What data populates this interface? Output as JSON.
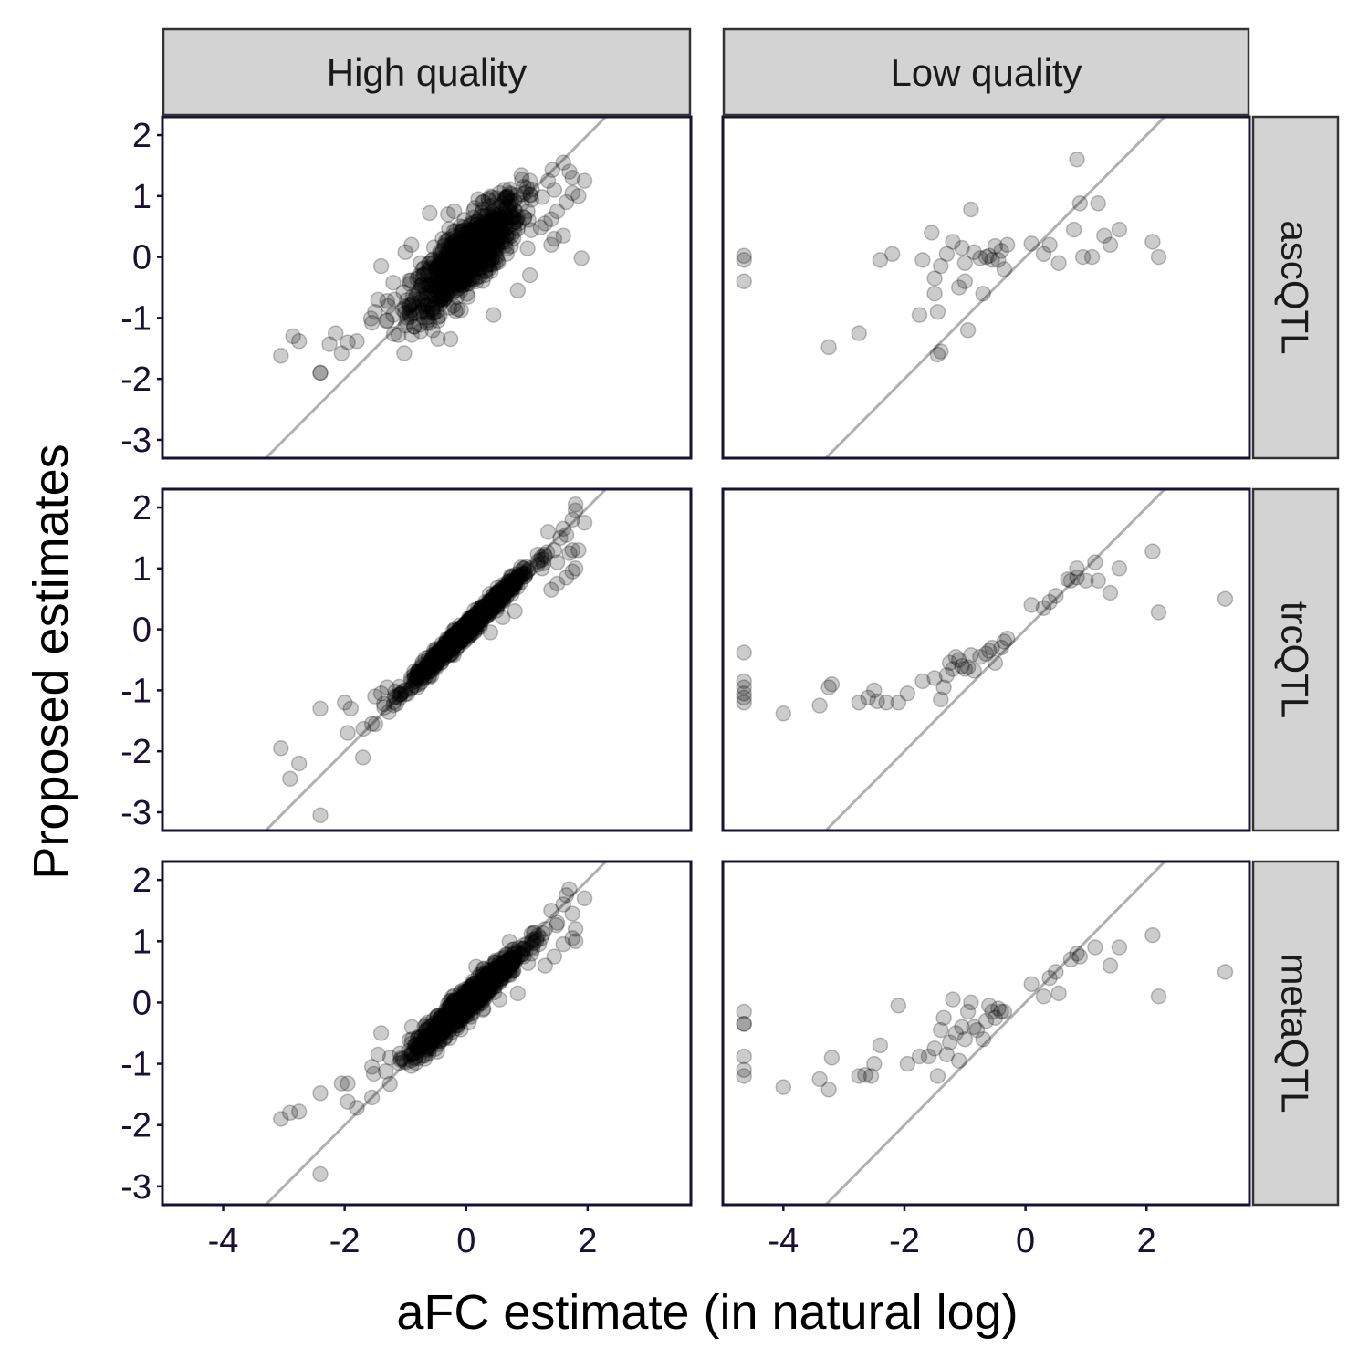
{
  "chart_data": {
    "type": "scatter",
    "xlabel": "aFC estimate (in natural log)",
    "ylabel": "Proposed estimates",
    "columns": [
      "High quality",
      "Low quality"
    ],
    "rows": [
      "ascQTL",
      "trcQTL",
      "metaQTL"
    ],
    "xlim": [
      -5.0,
      3.7
    ],
    "ylim": [
      -3.3,
      2.3
    ],
    "x_ticks": [
      -4,
      -2,
      0,
      2
    ],
    "y_ticks": [
      -3,
      -2,
      -1,
      0,
      1,
      2
    ],
    "reference_line": {
      "type": "identity",
      "slope": 1,
      "intercept": 0
    },
    "colors": {
      "point_fill": "#000000",
      "point_opacity": 0.2,
      "reference_line": "#b0b0b0",
      "panel_border": "#1a1033",
      "strip_fill": "#d3d3d3",
      "axis_text": "#1a1033"
    },
    "panels": [
      {
        "row": "ascQTL",
        "column": "High quality",
        "dense_cloud": {
          "n": 900,
          "x_center": 0.0,
          "x_sd": 0.45,
          "slope": 0.85,
          "noise_sd": 0.28
        },
        "points": [
          [
            -3.05,
            -1.62
          ],
          [
            -2.85,
            -1.3
          ],
          [
            -2.75,
            -1.38
          ],
          [
            -2.4,
            -1.9
          ],
          [
            -2.4,
            -1.9
          ],
          [
            -2.25,
            -1.43
          ],
          [
            -2.15,
            -1.25
          ],
          [
            -2.05,
            -1.58
          ],
          [
            -1.95,
            -1.4
          ],
          [
            -1.8,
            -1.38
          ],
          [
            -1.55,
            -1.08
          ],
          [
            -1.5,
            -0.9
          ],
          [
            -1.45,
            -0.7
          ],
          [
            -1.3,
            -0.72
          ],
          [
            -1.4,
            -0.15
          ],
          [
            -1.2,
            -0.95
          ],
          [
            -1.2,
            -0.42
          ],
          [
            -1.0,
            0.08
          ],
          [
            -0.9,
            0.2
          ],
          [
            -0.6,
            0.72
          ],
          [
            -0.3,
            0.7
          ],
          [
            0.2,
            0.95
          ],
          [
            0.55,
            1.05
          ],
          [
            0.95,
            1.15
          ],
          [
            1.05,
            1.25
          ],
          [
            1.35,
            1.25
          ],
          [
            1.45,
            1.1
          ],
          [
            1.5,
            0.75
          ],
          [
            1.6,
            1.55
          ],
          [
            1.65,
            0.9
          ],
          [
            1.7,
            1.4
          ],
          [
            1.75,
            1.3
          ],
          [
            1.75,
            1.05
          ],
          [
            1.85,
            1.0
          ],
          [
            1.95,
            1.25
          ],
          [
            1.4,
            0.62
          ],
          [
            1.3,
            0.55
          ],
          [
            1.45,
            0.3
          ],
          [
            1.4,
            0.2
          ],
          [
            1.6,
            0.35
          ],
          [
            1.9,
            -0.02
          ],
          [
            1.05,
            -0.3
          ],
          [
            0.85,
            -0.55
          ],
          [
            0.45,
            -0.95
          ],
          [
            0.8,
            0.42
          ],
          [
            -0.75,
            -0.9
          ],
          [
            -0.55,
            -1.2
          ]
        ]
      },
      {
        "row": "ascQTL",
        "column": "Low quality",
        "points": [
          [
            -4.65,
            0.02
          ],
          [
            -4.65,
            -0.05
          ],
          [
            -4.65,
            -0.4
          ],
          [
            -3.25,
            -1.48
          ],
          [
            -2.75,
            -1.25
          ],
          [
            -2.4,
            -0.05
          ],
          [
            -2.2,
            0.05
          ],
          [
            -1.75,
            -0.95
          ],
          [
            -1.7,
            -0.05
          ],
          [
            -1.55,
            0.4
          ],
          [
            -1.5,
            -0.6
          ],
          [
            -1.5,
            -0.35
          ],
          [
            -1.45,
            -0.9
          ],
          [
            -1.45,
            -1.6
          ],
          [
            -1.4,
            -1.55
          ],
          [
            -1.4,
            -0.15
          ],
          [
            -1.3,
            0.05
          ],
          [
            -1.2,
            0.25
          ],
          [
            -1.1,
            -0.5
          ],
          [
            -1.05,
            0.15
          ],
          [
            -1.0,
            -0.1
          ],
          [
            -1.0,
            -0.4
          ],
          [
            -0.95,
            -1.2
          ],
          [
            -0.9,
            0.78
          ],
          [
            -0.85,
            0.08
          ],
          [
            -0.75,
            -0.02
          ],
          [
            -0.7,
            -0.6
          ],
          [
            -0.65,
            0.0
          ],
          [
            -0.6,
            0.02
          ],
          [
            -0.55,
            -0.05
          ],
          [
            -0.5,
            0.18
          ],
          [
            -0.45,
            -0.05
          ],
          [
            -0.4,
            0.1
          ],
          [
            -0.35,
            -0.2
          ],
          [
            -0.3,
            0.2
          ],
          [
            0.1,
            0.22
          ],
          [
            0.3,
            0.05
          ],
          [
            0.4,
            0.2
          ],
          [
            0.55,
            -0.1
          ],
          [
            0.85,
            1.6
          ],
          [
            0.8,
            0.45
          ],
          [
            0.9,
            0.88
          ],
          [
            0.95,
            0.0
          ],
          [
            1.1,
            0.0
          ],
          [
            1.2,
            0.88
          ],
          [
            1.3,
            0.35
          ],
          [
            1.4,
            0.2
          ],
          [
            1.55,
            0.45
          ],
          [
            2.1,
            0.25
          ],
          [
            2.2,
            0.0
          ]
        ]
      },
      {
        "row": "trcQTL",
        "column": "High quality",
        "dense_cloud": {
          "n": 900,
          "x_center": 0.0,
          "x_sd": 0.45,
          "slope": 0.97,
          "noise_sd": 0.07
        },
        "points": [
          [
            -3.05,
            -1.95
          ],
          [
            -2.9,
            -2.45
          ],
          [
            -2.75,
            -2.2
          ],
          [
            -2.4,
            -1.3
          ],
          [
            -2.4,
            -3.05
          ],
          [
            -2.0,
            -1.2
          ],
          [
            -1.95,
            -1.7
          ],
          [
            -1.9,
            -1.3
          ],
          [
            -1.7,
            -2.1
          ],
          [
            -1.55,
            -1.55
          ],
          [
            -1.5,
            -1.1
          ],
          [
            -1.4,
            -1.05
          ],
          [
            -1.3,
            -0.95
          ],
          [
            1.25,
            1.0
          ],
          [
            1.3,
            1.2
          ],
          [
            1.35,
            1.6
          ],
          [
            1.45,
            1.3
          ],
          [
            1.5,
            1.1
          ],
          [
            1.55,
            1.5
          ],
          [
            1.6,
            1.65
          ],
          [
            1.65,
            1.55
          ],
          [
            1.7,
            1.25
          ],
          [
            1.75,
            1.8
          ],
          [
            1.8,
            2.05
          ],
          [
            1.8,
            1.95
          ],
          [
            1.75,
            1.3
          ],
          [
            1.8,
            1.0
          ],
          [
            1.95,
            1.75
          ],
          [
            1.85,
            1.3
          ],
          [
            1.75,
            0.95
          ],
          [
            1.65,
            0.85
          ],
          [
            1.5,
            0.75
          ],
          [
            1.4,
            0.65
          ],
          [
            0.8,
            0.3
          ],
          [
            0.6,
            0.2
          ],
          [
            0.4,
            -0.05
          ],
          [
            -0.6,
            -0.75
          ],
          [
            -0.8,
            -0.95
          ]
        ]
      },
      {
        "row": "trcQTL",
        "column": "Low quality",
        "points": [
          [
            -4.65,
            -0.38
          ],
          [
            -4.65,
            -0.85
          ],
          [
            -4.65,
            -0.95
          ],
          [
            -4.65,
            -1.05
          ],
          [
            -4.65,
            -1.12
          ],
          [
            -4.65,
            -1.2
          ],
          [
            -4.0,
            -1.38
          ],
          [
            -3.4,
            -1.25
          ],
          [
            -3.25,
            -0.95
          ],
          [
            -3.2,
            -0.9
          ],
          [
            -2.75,
            -1.2
          ],
          [
            -2.6,
            -1.12
          ],
          [
            -2.5,
            -1.0
          ],
          [
            -2.45,
            -1.18
          ],
          [
            -2.3,
            -1.2
          ],
          [
            -2.1,
            -1.2
          ],
          [
            -1.95,
            -1.05
          ],
          [
            -1.7,
            -0.85
          ],
          [
            -1.5,
            -0.8
          ],
          [
            -1.4,
            -1.15
          ],
          [
            -1.35,
            -0.95
          ],
          [
            -1.3,
            -0.75
          ],
          [
            -1.25,
            -0.55
          ],
          [
            -1.2,
            -0.65
          ],
          [
            -1.15,
            -0.45
          ],
          [
            -1.1,
            -0.5
          ],
          [
            -1.05,
            -0.6
          ],
          [
            -1.0,
            -0.65
          ],
          [
            -0.95,
            -0.62
          ],
          [
            -0.9,
            -0.42
          ],
          [
            -0.85,
            -0.68
          ],
          [
            -0.75,
            -0.45
          ],
          [
            -0.65,
            -0.4
          ],
          [
            -0.6,
            -0.35
          ],
          [
            -0.55,
            -0.3
          ],
          [
            -0.5,
            -0.55
          ],
          [
            -0.4,
            -0.3
          ],
          [
            -0.35,
            -0.2
          ],
          [
            -0.3,
            -0.15
          ],
          [
            0.1,
            0.4
          ],
          [
            0.3,
            0.35
          ],
          [
            0.4,
            0.45
          ],
          [
            0.5,
            0.55
          ],
          [
            0.7,
            0.82
          ],
          [
            0.75,
            0.8
          ],
          [
            0.85,
            0.85
          ],
          [
            0.85,
            1.0
          ],
          [
            1.0,
            0.8
          ],
          [
            1.15,
            1.1
          ],
          [
            1.2,
            0.8
          ],
          [
            1.4,
            0.6
          ],
          [
            1.55,
            1.0
          ],
          [
            2.1,
            1.28
          ],
          [
            2.2,
            0.28
          ],
          [
            3.3,
            0.5
          ]
        ]
      },
      {
        "row": "metaQTL",
        "column": "High quality",
        "dense_cloud": {
          "n": 900,
          "x_center": 0.0,
          "x_sd": 0.45,
          "slope": 0.93,
          "noise_sd": 0.12
        },
        "points": [
          [
            -3.05,
            -1.9
          ],
          [
            -2.9,
            -1.8
          ],
          [
            -2.75,
            -1.78
          ],
          [
            -2.4,
            -1.48
          ],
          [
            -2.4,
            -2.8
          ],
          [
            -2.05,
            -1.32
          ],
          [
            -1.95,
            -1.32
          ],
          [
            -1.95,
            -1.62
          ],
          [
            -1.8,
            -1.72
          ],
          [
            -1.55,
            -1.55
          ],
          [
            -1.55,
            -1.05
          ],
          [
            -1.45,
            -0.85
          ],
          [
            -1.4,
            -0.5
          ],
          [
            -1.25,
            -0.9
          ],
          [
            1.2,
            0.95
          ],
          [
            1.3,
            1.2
          ],
          [
            1.4,
            1.5
          ],
          [
            1.5,
            1.3
          ],
          [
            1.6,
            1.6
          ],
          [
            1.65,
            1.75
          ],
          [
            1.7,
            1.85
          ],
          [
            1.75,
            1.45
          ],
          [
            1.8,
            1.2
          ],
          [
            1.95,
            1.7
          ],
          [
            1.8,
            1.0
          ],
          [
            1.75,
            1.05
          ],
          [
            1.6,
            0.95
          ],
          [
            1.45,
            0.75
          ],
          [
            1.3,
            0.6
          ],
          [
            0.85,
            0.15
          ],
          [
            0.55,
            0.05
          ],
          [
            -0.6,
            -0.55
          ],
          [
            -0.8,
            -0.75
          ],
          [
            -0.05,
            0.05
          ]
        ]
      },
      {
        "row": "metaQTL",
        "column": "Low quality",
        "points": [
          [
            -4.65,
            -0.15
          ],
          [
            -4.65,
            -0.35
          ],
          [
            -4.65,
            -0.35
          ],
          [
            -4.65,
            -0.88
          ],
          [
            -4.65,
            -1.1
          ],
          [
            -4.65,
            -1.2
          ],
          [
            -4.0,
            -1.38
          ],
          [
            -3.4,
            -1.25
          ],
          [
            -3.25,
            -1.42
          ],
          [
            -3.2,
            -0.9
          ],
          [
            -2.75,
            -1.2
          ],
          [
            -2.65,
            -1.18
          ],
          [
            -2.55,
            -1.2
          ],
          [
            -2.5,
            -1.0
          ],
          [
            -2.4,
            -0.7
          ],
          [
            -2.1,
            -0.05
          ],
          [
            -1.95,
            -1.0
          ],
          [
            -1.75,
            -0.88
          ],
          [
            -1.6,
            -0.88
          ],
          [
            -1.5,
            -0.75
          ],
          [
            -1.45,
            -1.2
          ],
          [
            -1.4,
            -0.45
          ],
          [
            -1.35,
            -0.25
          ],
          [
            -1.3,
            -0.85
          ],
          [
            -1.25,
            -0.65
          ],
          [
            -1.2,
            0.05
          ],
          [
            -1.15,
            -0.5
          ],
          [
            -1.1,
            -0.95
          ],
          [
            -1.05,
            -0.4
          ],
          [
            -1.0,
            -0.6
          ],
          [
            -0.95,
            -0.15
          ],
          [
            -0.9,
            0.0
          ],
          [
            -0.85,
            -0.4
          ],
          [
            -0.8,
            -0.45
          ],
          [
            -0.7,
            -0.6
          ],
          [
            -0.65,
            -0.3
          ],
          [
            -0.6,
            -0.05
          ],
          [
            -0.55,
            -0.15
          ],
          [
            -0.5,
            -0.25
          ],
          [
            -0.45,
            -0.1
          ],
          [
            -0.4,
            -0.15
          ],
          [
            -0.35,
            -0.15
          ],
          [
            0.1,
            0.3
          ],
          [
            0.3,
            0.1
          ],
          [
            0.4,
            0.4
          ],
          [
            0.5,
            0.5
          ],
          [
            0.55,
            0.15
          ],
          [
            0.75,
            0.7
          ],
          [
            0.85,
            0.8
          ],
          [
            0.9,
            0.75
          ],
          [
            1.15,
            0.9
          ],
          [
            1.4,
            0.6
          ],
          [
            1.55,
            0.9
          ],
          [
            2.1,
            1.1
          ],
          [
            2.2,
            0.1
          ],
          [
            3.3,
            0.5
          ]
        ]
      }
    ]
  }
}
